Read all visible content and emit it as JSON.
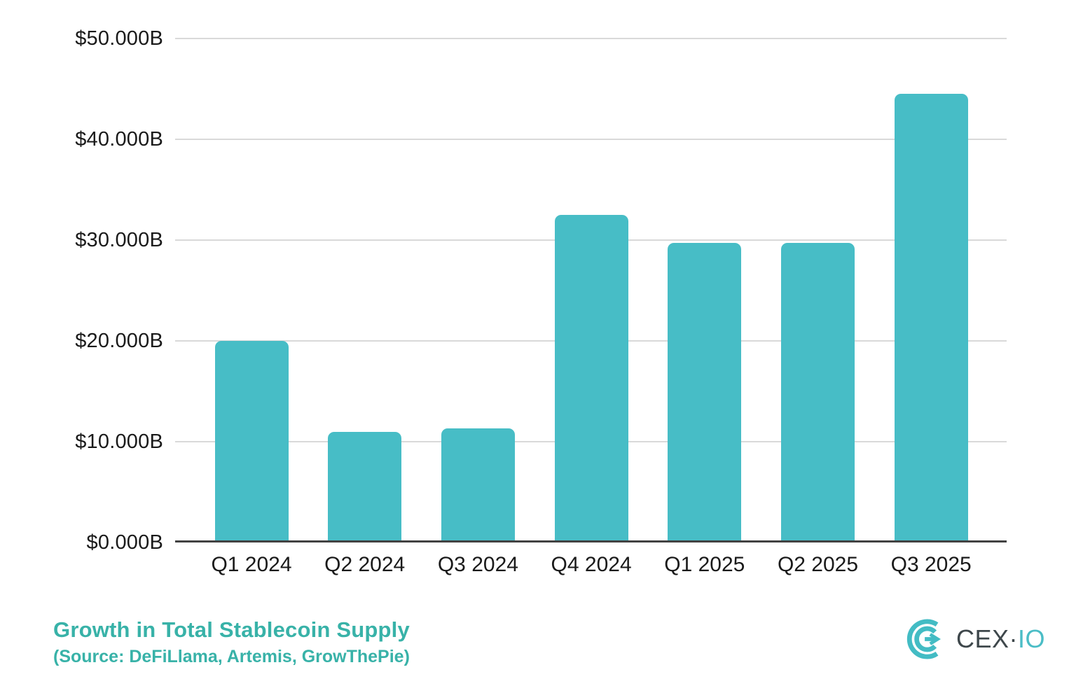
{
  "chart_data": {
    "type": "bar",
    "title": "Growth in Total Stablecoin Supply",
    "subtitle": "(Source: DeFiLlama, Artemis, GrowThePie)",
    "categories": [
      "Q1 2024",
      "Q2 2024",
      "Q3 2024",
      "Q4 2024",
      "Q1 2025",
      "Q2 2025",
      "Q3 2025"
    ],
    "values": [
      20.0,
      11.0,
      11.3,
      32.5,
      29.7,
      29.7,
      44.5
    ],
    "unit": "billions USD",
    "xlabel": "",
    "ylabel": "",
    "ylim": [
      0,
      50
    ],
    "y_ticks": [
      {
        "value": 50,
        "label": "$50.000B"
      },
      {
        "value": 40,
        "label": "$40.000B"
      },
      {
        "value": 30,
        "label": "$30.000B"
      },
      {
        "value": 20,
        "label": "$20.000B"
      },
      {
        "value": 10,
        "label": "$10.000B"
      },
      {
        "value": 0,
        "label": "$0.000B"
      }
    ],
    "grid": "horizontal",
    "legend_position": "none",
    "bar_color": "#47BDC6",
    "gridline_color": "#D9D9D9",
    "axis_line_color": "#424242",
    "tick_label_color": "#1A1A1A"
  },
  "footer": {
    "title": "Growth in Total Stablecoin Supply",
    "source": "(Source: DeFiLlama, Artemis, GrowThePie)",
    "accent_color": "#38B2A8"
  },
  "logo": {
    "text_primary": "CEX",
    "separator": "·",
    "text_secondary": "IO",
    "mark_color": "#43BCC4",
    "text_primary_color": "#3E474B",
    "text_secondary_color": "#4ABDC6"
  }
}
